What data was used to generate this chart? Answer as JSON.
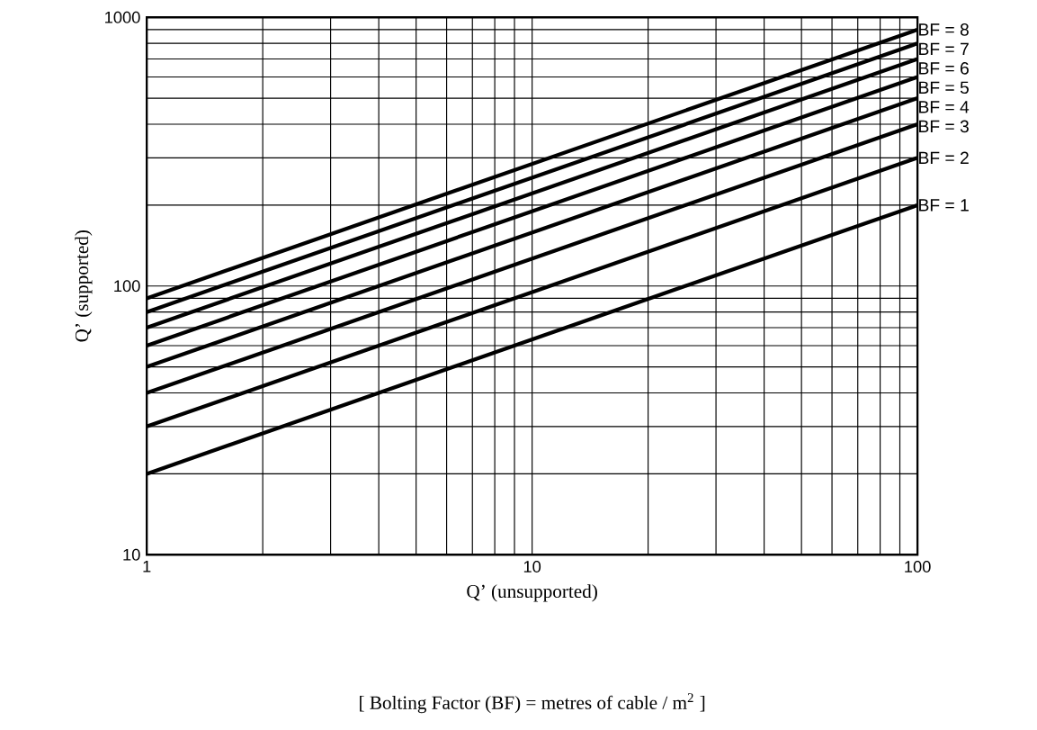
{
  "chart_data": {
    "type": "line",
    "xlabel": "Q’ (unsupported)",
    "ylabel": "Q’ (supported)",
    "annotations": [
      "[ Bolting Factor (BF) = metres of cable / m$^{2}$ ]"
    ],
    "log": "xy",
    "grid": true,
    "legend": false,
    "marker": "none",
    "line_style": "solid",
    "x": [
      1,
      100
    ],
    "xlim": [
      1,
      100
    ],
    "ylim": [
      10,
      1000
    ],
    "xticks": [
      1,
      10,
      100
    ],
    "yticks": [
      10,
      100,
      1000
    ],
    "series": [
      {
        "name": "BF = 1",
        "color": "#000000",
        "values": [
          20,
          200
        ]
      },
      {
        "name": "BF = 2",
        "color": "#000000",
        "values": [
          30,
          300
        ]
      },
      {
        "name": "BF = 3",
        "color": "#000000",
        "values": [
          40,
          400
        ]
      },
      {
        "name": "BF = 4",
        "color": "#000000",
        "values": [
          50,
          500
        ]
      },
      {
        "name": "BF = 5",
        "color": "#000000",
        "values": [
          60,
          600
        ]
      },
      {
        "name": "BF = 6",
        "color": "#000000",
        "values": [
          70,
          700
        ]
      },
      {
        "name": "BF = 7",
        "color": "#000000",
        "values": [
          80,
          800
        ]
      },
      {
        "name": "BF = 8",
        "color": "#000000",
        "values": [
          90,
          900
        ]
      }
    ]
  }
}
